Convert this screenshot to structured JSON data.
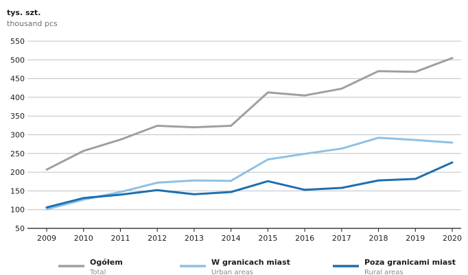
{
  "chart_data": {
    "type": "line",
    "ylabel": "tys. szt.",
    "ylabel_en": "thousand pcs",
    "ylim": [
      50,
      550
    ],
    "yticks": [
      "550",
      "500",
      "450",
      "400",
      "350",
      "300",
      "250",
      "200",
      "150",
      "100",
      "50"
    ],
    "ytick_values": [
      550,
      500,
      450,
      400,
      350,
      300,
      250,
      200,
      150,
      100,
      50
    ],
    "categories": [
      "2009",
      "2010",
      "2011",
      "2012",
      "2013",
      "2014",
      "2015",
      "2016",
      "2017",
      "2018",
      "2019",
      "2020"
    ],
    "grid": true,
    "legend_position": "bottom",
    "series": [
      {
        "name": "Ogółem",
        "name_en": "Total",
        "color": "#9d9fa2",
        "values": [
          207,
          257,
          287,
          324,
          320,
          324,
          413,
          405,
          423,
          470,
          468,
          505
        ]
      },
      {
        "name": "W granicach miast",
        "name_en": "Urban areas",
        "color": "#8ec1e5",
        "values": [
          101,
          127,
          147,
          172,
          178,
          177,
          234,
          249,
          263,
          292,
          286,
          279
        ]
      },
      {
        "name": "Poza granicami miast",
        "name_en": "Rural areas",
        "color": "#1d6fb0",
        "values": [
          106,
          131,
          140,
          152,
          141,
          147,
          176,
          153,
          158,
          178,
          182,
          226
        ]
      }
    ]
  }
}
